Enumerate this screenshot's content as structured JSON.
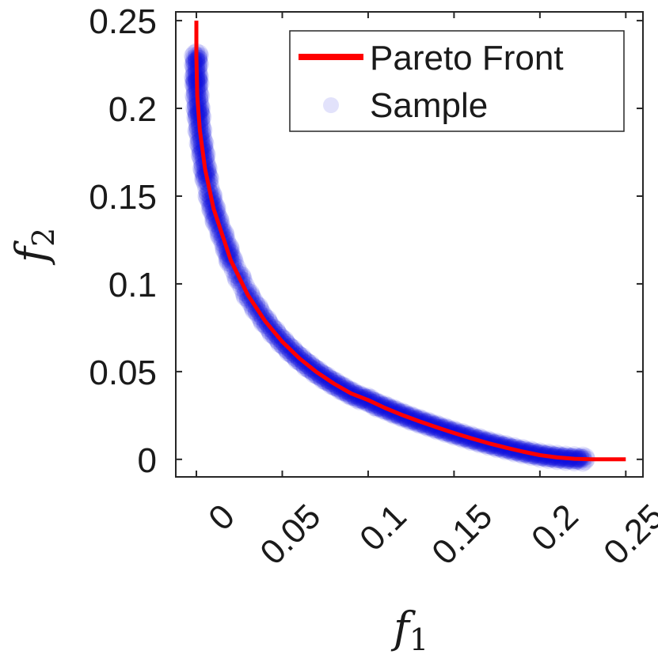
{
  "chart_data": {
    "type": "scatter",
    "title": "",
    "xlabel": {
      "base": "f",
      "sub": "1"
    },
    "ylabel": {
      "base": "f",
      "sub": "2"
    },
    "xlim": [
      -0.012,
      0.26
    ],
    "ylim": [
      -0.01,
      0.255
    ],
    "xticks": [
      0,
      0.05,
      0.1,
      0.15,
      0.2,
      0.25
    ],
    "xtick_labels": [
      "0",
      "0.05",
      "0.1",
      "0.15",
      "0.2",
      "0.25"
    ],
    "yticks": [
      0,
      0.05,
      0.1,
      0.15,
      0.2,
      0.25
    ],
    "ytick_labels": [
      "0",
      "0.05",
      "0.1",
      "0.15",
      "0.2",
      "0.25"
    ],
    "grid": false,
    "legend_position": "top-right",
    "series": [
      {
        "name": "Pareto Front",
        "kind": "line",
        "color": "#ff0000",
        "x": [
          0,
          0,
          0.0005,
          0.002,
          0.005,
          0.01,
          0.02,
          0.03,
          0.04,
          0.05,
          0.06,
          0.07,
          0.08,
          0.09,
          0.1,
          0.11,
          0.12,
          0.13,
          0.14,
          0.15,
          0.16,
          0.17,
          0.18,
          0.19,
          0.2,
          0.21,
          0.22,
          0.23,
          0.24,
          0.25
        ],
        "y": [
          0.25,
          0.23,
          0.2071,
          0.1875,
          0.1657,
          0.1429,
          0.1135,
          0.0936,
          0.0788,
          0.067,
          0.0575,
          0.0497,
          0.0432,
          0.0376,
          0.0338,
          0.0292,
          0.0252,
          0.0216,
          0.0182,
          0.015,
          0.012,
          0.0092,
          0.0067,
          0.0044,
          0.0024,
          0.0011,
          0.0003,
          0.0,
          0.0,
          0.0
        ]
      },
      {
        "name": "Sample",
        "kind": "scatter",
        "color": "#1010e0",
        "x": [
          0,
          0,
          0,
          0.0002,
          0.0005,
          0.001,
          0.0015,
          0.002,
          0.003,
          0.004,
          0.005,
          0.006,
          0.008,
          0.01,
          0.012,
          0.015,
          0.018,
          0.02,
          0.025,
          0.03,
          0.035,
          0.04,
          0.045,
          0.05,
          0.055,
          0.06,
          0.065,
          0.07,
          0.075,
          0.08,
          0.085,
          0.09,
          0.095,
          0.1,
          0.105,
          0.11,
          0.115,
          0.12,
          0.125,
          0.13,
          0.135,
          0.14,
          0.145,
          0.15,
          0.155,
          0.16,
          0.165,
          0.17,
          0.175,
          0.18,
          0.185,
          0.19,
          0.195,
          0.2,
          0.205,
          0.21,
          0.215,
          0.22,
          0.225
        ],
        "y": [
          0.23,
          0.225,
          0.218,
          0.214,
          0.2071,
          0.2,
          0.195,
          0.1875,
          0.18,
          0.1734,
          0.1657,
          0.16,
          0.15,
          0.1429,
          0.136,
          0.128,
          0.12,
          0.1135,
          0.1035,
          0.0936,
          0.086,
          0.0788,
          0.0726,
          0.067,
          0.062,
          0.0575,
          0.0534,
          0.0497,
          0.0463,
          0.0432,
          0.0403,
          0.0376,
          0.0352,
          0.0338,
          0.031,
          0.0292,
          0.0271,
          0.0252,
          0.0233,
          0.0216,
          0.0199,
          0.0182,
          0.0166,
          0.015,
          0.0135,
          0.012,
          0.0106,
          0.0092,
          0.0079,
          0.0067,
          0.0055,
          0.0044,
          0.0034,
          0.0024,
          0.0017,
          0.0011,
          0.0006,
          0.0003,
          0.0001
        ]
      }
    ]
  }
}
